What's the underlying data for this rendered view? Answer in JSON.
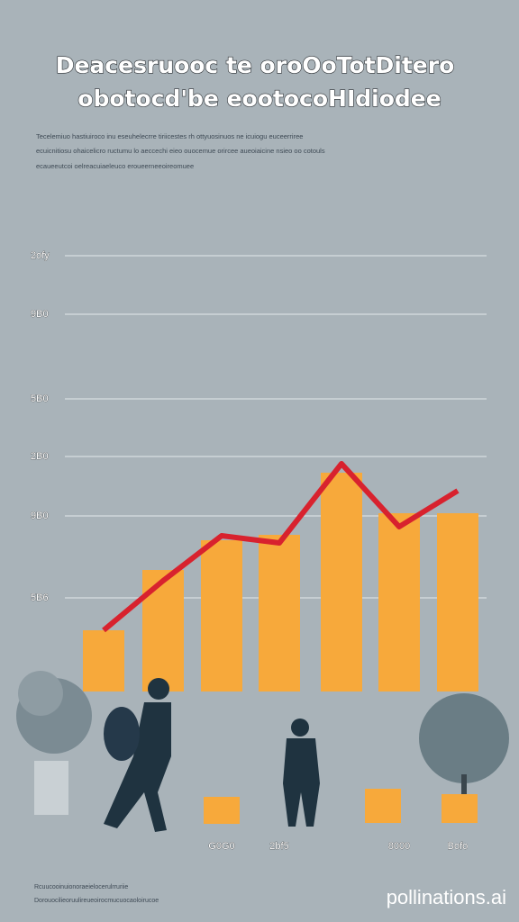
{
  "chart_data": {
    "type": "bar",
    "title": "Deacesruooc te oroOoTotDitero",
    "subtitle": "obotocd'be eootocoHIdiodee",
    "description": [
      "Tecelemiuo hastiuiroco inu eseuhelecrre tiriicestes rh ottyuosinuos ne icuiogu euceerriree",
      "ecuicnitiosu ohaicelicro ructumu lo aeccechi eieo ouocemue orircee aueoiaicine nsieo oo cotouls",
      "ecaueeutcoi oelreacuiaeleuco eroueerneeoireomuee"
    ],
    "categories": [
      null,
      null,
      "G0G0",
      "2bf5",
      null,
      "8000",
      "Bofo"
    ],
    "series": [
      {
        "color": "#f7a93b",
        "values": [
          68,
          135,
          168,
          174,
          243,
          198,
          198
        ]
      },
      {
        "type": "line",
        "color": "#d8222e",
        "values": [
          68,
          123,
          173,
          165,
          253,
          183,
          223
        ]
      }
    ],
    "ylim": [
      0,
      484
    ],
    "yticks": [
      {
        "value": 104,
        "label": "5B6"
      },
      {
        "value": 195,
        "label": "9B0"
      },
      {
        "value": 261,
        "label": "2B0"
      },
      {
        "value": 325,
        "label": "5B0"
      },
      {
        "value": 419,
        "label": "9B0"
      },
      {
        "value": 484,
        "label": "2ofy"
      }
    ],
    "grid": true,
    "footer": [
      "Rcuucooinuionoraeielocerulrruriie",
      "Dorouocilieoruulireueoirocmucuocaoloirucoe"
    ],
    "watermark": "pollinations.ai"
  }
}
